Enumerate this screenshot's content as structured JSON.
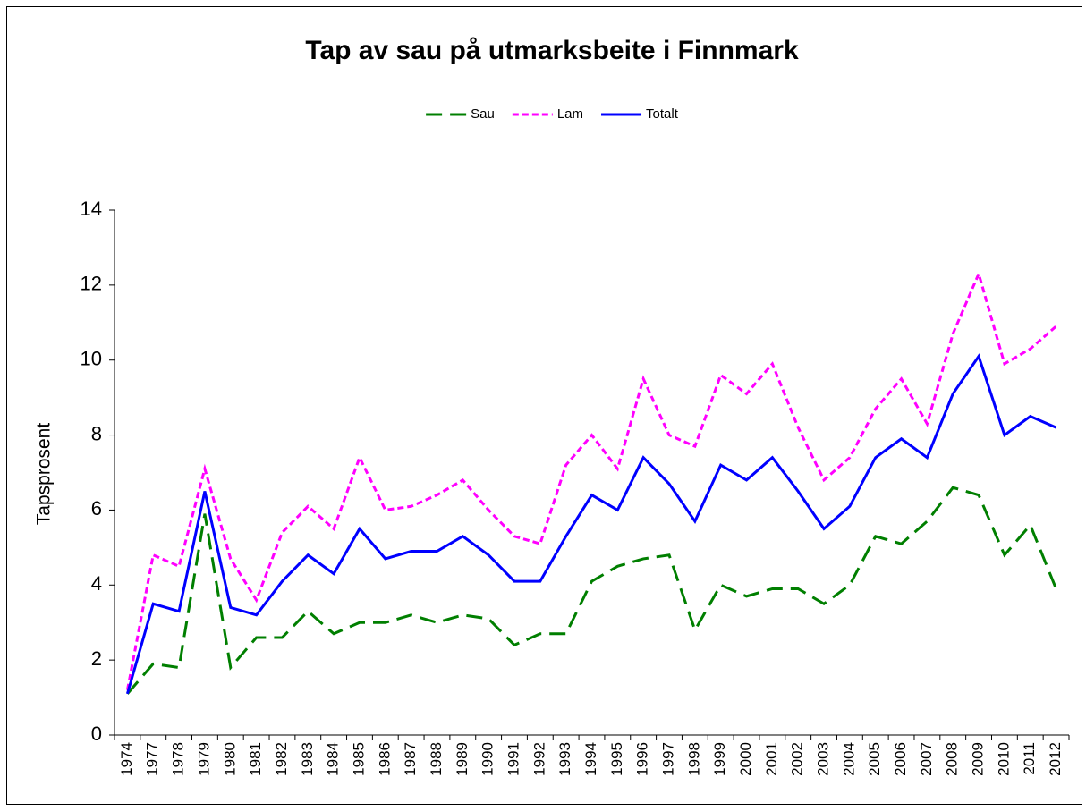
{
  "chart_data": {
    "type": "line",
    "title": "Tap av sau på utmarksbeite i Finnmark",
    "y_label": "Tapsprosent",
    "categories": [
      "1974",
      "1977",
      "1978",
      "1979",
      "1980",
      "1981",
      "1982",
      "1983",
      "1984",
      "1985",
      "1986",
      "1987",
      "1988",
      "1989",
      "1990",
      "1991",
      "1992",
      "1993",
      "1994",
      "1995",
      "1996",
      "1997",
      "1998",
      "1999",
      "2000",
      "2001",
      "2002",
      "2003",
      "2004",
      "2005",
      "2006",
      "2007",
      "2008",
      "2009",
      "2010",
      "2011",
      "2012"
    ],
    "series": [
      {
        "name": "Sau",
        "color": "#007f00",
        "style": "long-dash",
        "values": [
          1.1,
          1.9,
          1.8,
          5.9,
          1.8,
          2.6,
          2.6,
          3.3,
          2.7,
          3.0,
          3.0,
          3.2,
          3.0,
          3.2,
          3.1,
          2.4,
          2.7,
          2.7,
          4.1,
          4.5,
          4.7,
          4.8,
          2.8,
          4.0,
          3.7,
          3.9,
          3.9,
          3.5,
          4.0,
          5.3,
          5.1,
          5.7,
          6.6,
          6.4,
          4.8,
          5.6,
          3.9
        ]
      },
      {
        "name": "Lam",
        "color": "#ff00ff",
        "style": "short-dash",
        "values": [
          1.2,
          4.8,
          4.5,
          7.1,
          4.7,
          3.6,
          5.4,
          6.1,
          5.5,
          7.4,
          6.0,
          6.1,
          6.4,
          6.8,
          6.0,
          5.3,
          5.1,
          7.2,
          8.0,
          7.1,
          9.5,
          8.0,
          7.7,
          9.6,
          9.1,
          9.9,
          8.2,
          6.8,
          7.4,
          8.7,
          9.5,
          8.3,
          10.7,
          12.3,
          9.9,
          10.3,
          10.9
        ]
      },
      {
        "name": "Totalt",
        "color": "#0000ff",
        "style": "solid",
        "values": [
          1.1,
          3.5,
          3.3,
          6.5,
          3.4,
          3.2,
          4.1,
          4.8,
          4.3,
          5.5,
          4.7,
          4.9,
          4.9,
          5.3,
          4.8,
          4.1,
          4.1,
          5.3,
          6.4,
          6.0,
          7.4,
          6.7,
          5.7,
          7.2,
          6.8,
          7.4,
          6.5,
          5.5,
          6.1,
          7.4,
          7.9,
          7.4,
          9.1,
          10.1,
          8.0,
          8.5,
          8.2
        ]
      }
    ],
    "ylim": [
      0,
      14
    ],
    "yticks": [
      0,
      2,
      4,
      6,
      8,
      10,
      12,
      14
    ],
    "grid": false,
    "legend": "top"
  }
}
